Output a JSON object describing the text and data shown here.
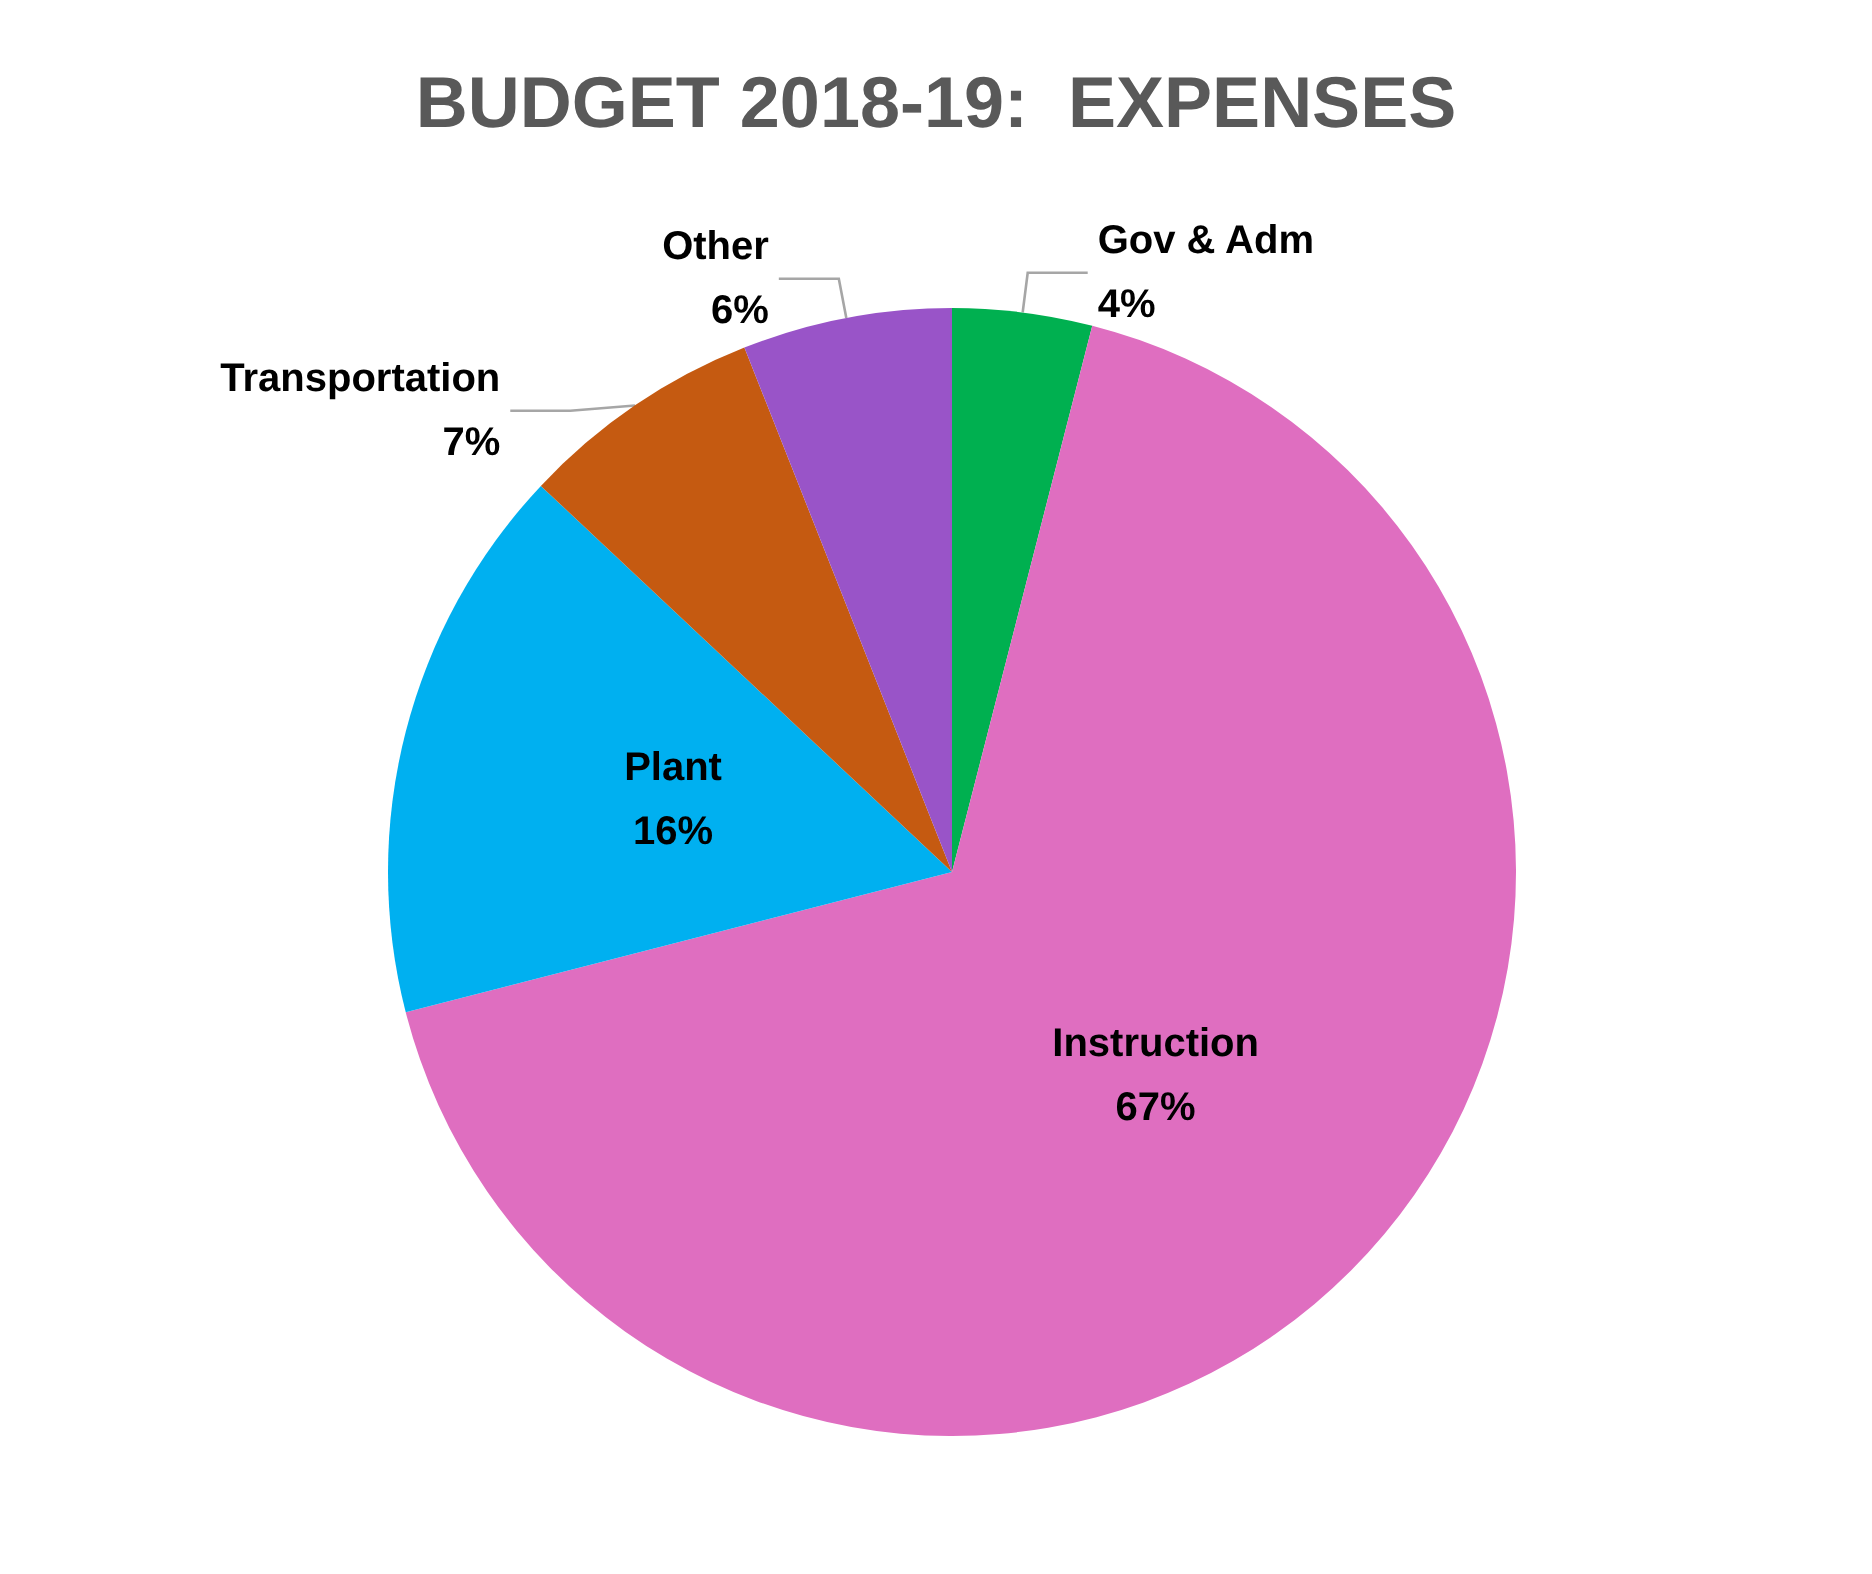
{
  "chart_data": {
    "type": "pie",
    "title": "BUDGET 2018-19:  EXPENSES",
    "categories": [
      "Gov & Adm",
      "Instruction",
      "Plant",
      "Transportation",
      "Other"
    ],
    "values": [
      4,
      67,
      16,
      7,
      6
    ],
    "colors": [
      "#00b050",
      "#df6ec0",
      "#00b0f0",
      "#c55a11",
      "#9954c8"
    ],
    "value_labels": [
      "4%",
      "67%",
      "16%",
      "7%",
      "6%"
    ],
    "legend": false
  }
}
